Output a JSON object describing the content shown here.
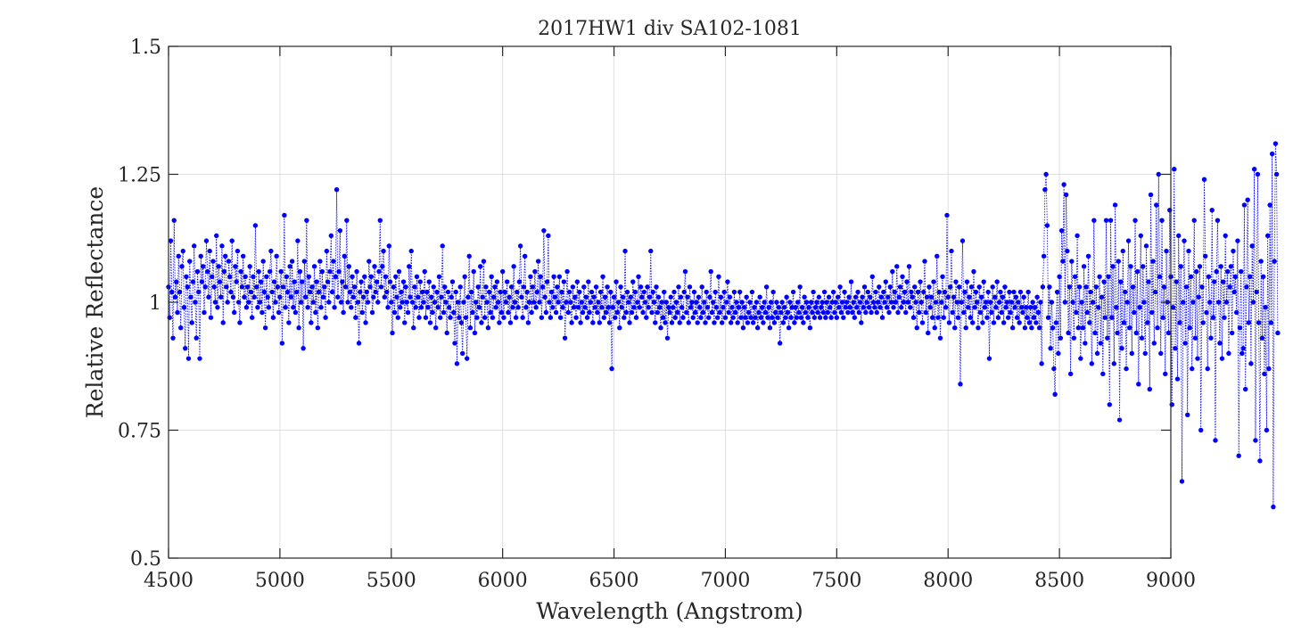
{
  "chart_data": {
    "type": "scatter",
    "title": "2017HW1 div SA102-1081",
    "xlabel": "Wavelength (Angstrom)",
    "ylabel": "Relative Reflectance",
    "xlim": [
      4500,
      9000
    ],
    "ylim": [
      0.5,
      1.5
    ],
    "xticks": [
      4500,
      5000,
      5500,
      6000,
      6500,
      7000,
      7500,
      8000,
      8500,
      9000
    ],
    "yticks": [
      0.5,
      0.75,
      1,
      1.25,
      1.5
    ],
    "xtick_labels": [
      "4500",
      "5000",
      "5500",
      "6000",
      "6500",
      "7000",
      "7500",
      "8000",
      "8500",
      "9000"
    ],
    "ytick_labels": [
      "0.5",
      "0.75",
      "1",
      "1.25",
      "1.5"
    ],
    "grid": true,
    "line_style": "dotted",
    "marker": "filled-circle",
    "series_color": "#0000ff",
    "series": [
      {
        "x_start": 4500,
        "x_step": 5,
        "values": [
          1.03,
          0.97,
          1.12,
          1.02,
          0.93,
          1.16,
          1.01,
          1.04,
          0.98,
          1.09,
          1.02,
          0.95,
          1.07,
          1.1,
          0.99,
          0.91,
          1.05,
          1.03,
          0.89,
          1.08,
          1.01,
          0.96,
          1.04,
          1.11,
          1.0,
          0.93,
          1.06,
          1.02,
          0.89,
          1.09,
          1.04,
          1.07,
          0.98,
          1.03,
          1.12,
          1.06,
          1.01,
          1.1,
          0.97,
          1.05,
          1.08,
          1.03,
          1.0,
          1.13,
          0.99,
          1.07,
          1.04,
          1.01,
          1.11,
          0.96,
          1.06,
          1.09,
          1.03,
          1.0,
          1.08,
          1.05,
          1.02,
          1.12,
          1.01,
          0.98,
          1.07,
          1.04,
          1.1,
          1.0,
          0.96,
          1.06,
          1.03,
          1.09,
          1.01,
          1.05,
          0.99,
          1.03,
          1.0,
          1.07,
          1.02,
          0.97,
          1.05,
          1.01,
          1.15,
          1.03,
          0.99,
          1.06,
          1.0,
          1.04,
          0.98,
          1.08,
          1.02,
          0.95,
          1.05,
          1.01,
          0.99,
          1.06,
          1.1,
          1.02,
          0.97,
          1.04,
          1.0,
          1.09,
          1.03,
          0.98,
          1.01,
          1.06,
          0.92,
          1.03,
          1.17,
          0.99,
          1.05,
          1.02,
          0.96,
          1.07,
          1.01,
          1.08,
          0.99,
          1.04,
          0.98,
          1.02,
          1.12,
          0.95,
          1.06,
          1.0,
          1.04,
          0.91,
          1.08,
          1.01,
          1.16,
          0.99,
          1.05,
          1.02,
          0.96,
          1.03,
          1.0,
          1.07,
          0.98,
          1.04,
          0.95,
          1.02,
          1.08,
          0.99,
          1.06,
          1.01,
          1.03,
          0.97,
          1.1,
          1.04,
          1.0,
          1.06,
          1.13,
          1.02,
          1.08,
          0.99,
          1.05,
          1.22,
          1.01,
          1.06,
          1.14,
          1.0,
          1.04,
          0.98,
          1.09,
          1.03,
          1.16,
          1.0,
          1.07,
          1.02,
          0.99,
          1.05,
          1.01,
          1.03,
          0.97,
          1.06,
          1.0,
          0.92,
          1.02,
          1.04,
          0.98,
          1.01,
          1.05,
          0.96,
          1.02,
          1.0,
          1.08,
          1.03,
          1.05,
          0.98,
          1.01,
          1.07,
          1.02,
          1.04,
          1.0,
          1.06,
          1.16,
          1.03,
          1.07,
          1.1,
          1.01,
          1.05,
          1.02,
          0.99,
          1.11,
          1.04,
          1.0,
          0.94,
          1.03,
          0.98,
          1.05,
          1.01,
          0.97,
          1.06,
          0.99,
          1.02,
          1.0,
          1.04,
          0.96,
          1.03,
          1.0,
          0.98,
          1.07,
          1.01,
          1.1,
          1.0,
          0.95,
          1.03,
          0.99,
          1.05,
          1.01,
          0.97,
          1.04,
          0.99,
          1.02,
          1.0,
          1.06,
          0.97,
          1.02,
          0.99,
          1.04,
          0.96,
          1.01,
          0.98,
          1.03,
          1.0,
          0.95,
          1.02,
          0.99,
          1.05,
          0.97,
          1.01,
          1.11,
          0.98,
          1.03,
          1.0,
          0.94,
          1.02,
          0.99,
          0.97,
          1.01,
          1.04,
          0.98,
          0.92,
          1.02,
          0.88,
          1.0,
          0.97,
          1.03,
          0.96,
          0.9,
          1.0,
          1.05,
          0.97,
          0.89,
          1.01,
          1.09,
          0.95,
          1.02,
          0.98,
          1.06,
          0.94,
          1.0,
          0.97,
          1.03,
          0.99,
          1.07,
          0.96,
          1.01,
          1.08,
          0.97,
          1.03,
          1.0,
          0.95,
          1.02,
          0.98,
          1.05,
          0.97,
          1.01,
          1.03,
          0.99,
          1.04,
          1.0,
          0.96,
          1.02,
          0.98,
          1.06,
          0.97,
          1.02,
          1.0,
          1.04,
          0.98,
          1.01,
          0.96,
          1.03,
          0.99,
          1.07,
          1.0,
          0.97,
          1.02,
          0.99,
          1.04,
          1.11,
          1.01,
          0.97,
          1.03,
          1.09,
          0.99,
          1.02,
          0.96,
          1.0,
          1.05,
          0.98,
          1.03,
          1.0,
          1.06,
          0.99,
          1.02,
          1.08,
          1.0,
          1.05,
          0.97,
          1.03,
          1.14,
          1.01,
          0.98,
          1.04,
          1.13,
          1.0,
          0.97,
          1.02,
          0.99,
          1.05,
          1.01,
          0.98,
          1.03,
          1.0,
          1.05,
          0.97,
          1.02,
          0.99,
          1.04,
          0.93,
          1.0,
          1.06,
          0.98,
          1.02,
          1.0,
          0.96,
          1.03,
          0.99,
          1.01,
          0.97,
          1.04,
          0.99,
          1.02,
          0.96,
          1.0,
          0.98,
          1.03,
          0.99,
          1.01,
          0.97,
          1.04,
          0.98,
          1.0,
          1.02,
          0.96,
          1.01,
          0.99,
          1.03,
          0.98,
          1.0,
          0.96,
          1.02,
          0.99,
          1.05,
          0.97,
          1.01,
          0.98,
          1.03,
          0.99,
          0.96,
          1.02,
          0.87,
          0.99,
          1.01,
          0.97,
          1.04,
          0.98,
          1.0,
          0.95,
          1.03,
          0.99,
          1.01,
          0.97,
          1.1,
          0.98,
          1.02,
          1.0,
          0.96,
          1.01,
          0.98,
          1.04,
          0.99,
          1.02,
          0.97,
          1.0,
          1.05,
          0.99,
          1.03,
          1.01,
          0.98,
          1.02,
          1.0,
          0.97,
          1.03,
          0.99,
          1.01,
          1.1,
          0.98,
          1.02,
          1.0,
          0.96,
          1.03,
          0.98,
          1.01,
          0.99,
          0.95,
          1.0,
          0.97,
          1.02,
          0.96,
          1.0,
          0.93,
          0.99,
          0.98,
          1.01,
          0.96,
          0.99,
          1.02,
          0.97,
          1.0,
          0.98,
          1.03,
          0.96,
          1.01,
          0.99,
          0.97,
          1.02,
          1.06,
          0.98,
          1.01,
          0.96,
          1.03,
          0.99,
          1.0,
          0.97,
          1.02,
          0.98,
          1.0,
          0.96,
          1.01,
          0.99,
          0.97,
          1.03,
          0.98,
          1.0,
          0.96,
          1.02,
          0.99,
          0.97,
          1.01,
          1.06,
          0.98,
          1.0,
          0.96,
          1.02,
          0.99,
          0.97,
          1.05,
          0.98,
          1.01,
          0.96,
          0.99,
          1.02,
          0.97,
          1.0,
          1.04,
          0.98,
          1.01,
          0.96,
          0.99,
          0.97,
          1.02,
          0.98,
          1.0,
          0.96,
          0.99,
          1.02,
          0.97,
          1.0,
          0.95,
          0.99,
          0.97,
          1.01,
          0.96,
          0.98,
          1.0,
          0.97,
          1.02,
          0.96,
          0.99,
          0.97,
          1.0,
          0.95,
          0.98,
          1.01,
          0.97,
          0.99,
          0.96,
          1.0,
          0.98,
          1.03,
          0.97,
          0.99,
          0.95,
          1.0,
          0.97,
          1.02,
          0.96,
          0.98,
          1.0,
          0.97,
          0.99,
          0.92,
          0.98,
          1.0,
          0.96,
          0.99,
          0.97,
          1.01,
          0.98,
          0.95,
          1.0,
          0.97,
          0.99,
          1.02,
          0.96,
          0.99,
          0.97,
          1.0,
          0.98,
          1.03,
          0.97,
          0.99,
          0.96,
          1.01,
          0.98,
          1.0,
          0.97,
          0.99,
          0.95,
          1.0,
          0.98,
          1.02,
          0.97,
          0.99,
          1.0,
          0.98,
          1.01,
          0.97,
          0.99,
          1.0,
          0.98,
          1.02,
          0.97,
          1.0,
          0.98,
          1.01,
          0.99,
          0.97,
          1.0,
          1.02,
          0.98,
          1.0,
          0.97,
          1.01,
          0.99,
          1.03,
          0.98,
          1.0,
          0.97,
          1.02,
          0.99,
          1.0,
          0.98,
          1.01,
          0.99,
          1.04,
          0.98,
          1.0,
          0.97,
          1.01,
          0.99,
          1.02,
          0.98,
          1.0,
          0.96,
          1.01,
          0.99,
          1.03,
          0.98,
          1.0,
          1.02,
          0.99,
          1.01,
          0.98,
          1.05,
          1.0,
          0.99,
          1.02,
          0.98,
          1.0,
          1.03,
          0.99,
          1.01,
          0.97,
          1.02,
          1.0,
          1.04,
          0.99,
          1.01,
          0.98,
          1.03,
          1.0,
          1.06,
          0.99,
          1.02,
          1.0,
          1.07,
          0.98,
          1.01,
          1.03,
          0.99,
          1.05,
          1.0,
          1.02,
          0.98,
          1.04,
          1.0,
          1.07,
          0.99,
          1.02,
          1.01,
          0.97,
          1.03,
          1.0,
          0.95,
          1.02,
          0.98,
          1.04,
          1.0,
          0.96,
          1.02,
          1.08,
          0.98,
          1.01,
          0.94,
          1.03,
          0.99,
          1.01,
          0.97,
          1.04,
          0.95,
          1.0,
          1.09,
          0.97,
          1.02,
          0.93,
          1.0,
          1.05,
          0.97,
          1.02,
          0.99,
          1.17,
          1.01,
          0.96,
          1.03,
          1.1,
          0.98,
          1.01,
          0.95,
          1.04,
          1.0,
          0.97,
          1.03,
          0.84,
          1.0,
          1.12,
          0.98,
          1.02,
          0.95,
          1.04,
          0.99,
          1.01,
          0.97,
          1.03,
          0.96,
          1.06,
          0.99,
          1.02,
          1.0,
          0.95,
          1.03,
          0.98,
          1.01,
          0.96,
          1.04,
          0.99,
          1.0,
          0.97,
          1.02,
          0.89,
          1.0,
          0.98,
          1.03,
          0.96,
          1.01,
          0.99,
          1.04,
          0.97,
          1.0,
          1.02,
          0.98,
          1.01,
          0.96,
          1.03,
          0.99,
          1.0,
          0.97,
          1.02,
          0.98,
          1.0,
          0.95,
          1.02,
          0.99,
          1.01,
          0.97,
          1.0,
          0.96,
          1.02,
          0.99,
          0.98,
          1.01,
          0.95,
          0.99,
          0.97,
          1.02,
          0.96,
          0.99,
          0.95,
          1.0,
          0.97,
          0.99,
          0.96,
          1.01,
          0.98,
          0.95,
          1.0,
          0.88,
          1.03,
          1.09,
          1.22,
          1.25,
          1.15,
          0.97,
          1.03,
          0.91,
          1.0,
          0.95,
          0.87,
          0.82,
          0.96,
          1.02,
          0.9,
          1.05,
          0.93,
          1.14,
          1.08,
          1.23,
          1.0,
          1.21,
          1.1,
          0.94,
          1.03,
          0.86,
          1.08,
          1.0,
          0.93,
          1.05,
          0.98,
          1.13,
          0.95,
          1.03,
          0.89,
          1.0,
          0.95,
          1.07,
          0.92,
          1.03,
          0.98,
          1.09,
          0.96,
          1.02,
          0.88,
          1.0,
          1.16,
          0.94,
          1.03,
          0.9,
          0.99,
          1.05,
          0.92,
          1.01,
          0.86,
          1.04,
          0.97,
          1.16,
          0.93,
          1.05,
          0.8,
          1.16,
          0.97,
          1.07,
          0.88,
          1.19,
          0.99,
          0.94,
          1.08,
          0.77,
          1.04,
          0.91,
          1.1,
          0.96,
          1.02,
          0.87,
          1.0,
          1.12,
          0.95,
          1.07,
          0.9,
          1.03,
          0.98,
          1.16,
          0.94,
          1.06,
          0.84,
          0.99,
          1.13,
          0.93,
          1.07,
          1.0,
          0.9,
          1.11,
          0.96,
          1.04,
          0.83,
          1.21,
          0.98,
          1.08,
          0.92,
          1.02,
          1.19,
          0.95,
          1.25,
          1.05,
          0.9,
          1.16,
          0.97,
          1.03,
          0.86,
          1.1,
          1.0,
          0.94,
          1.18,
          1.05,
          0.8,
          0.99,
          1.26,
          0.91,
          1.04,
          0.85,
          1.13,
          0.96,
          1.07,
          0.65,
          1.0,
          1.12,
          0.92,
          1.03,
          0.78,
          1.1,
          0.95,
          1.05,
          0.87,
          1.0,
          1.16,
          0.93,
          1.06,
          0.89,
          1.01,
          1.07,
          0.75,
          1.03,
          0.96,
          1.24,
          1.09,
          0.98,
          0.87,
          1.05,
          1.0,
          0.93,
          1.18,
          0.97,
          1.04,
          0.73,
          1.06,
          1.16,
          1.0,
          0.92,
          1.07,
          0.89,
          1.04,
          0.97,
          1.13,
          1.0,
          1.06,
          0.9,
          1.03,
          1.07,
          0.94,
          1.1,
          1.02,
          1.05,
          0.98,
          1.12,
          0.7,
          0.95,
          1.06,
          0.9,
          0.91,
          1.19,
          0.83,
          1.03,
          1.2,
          0.96,
          1.05,
          0.88,
          1.11,
          1.0,
          1.26,
          0.73,
          1.02,
          1.25,
          0.96,
          0.69,
          1.08,
          0.93,
          1.05,
          0.86,
          0.99,
          0.75,
          1.13,
          0.87,
          1.19,
          0.96,
          1.29,
          0.6,
          1.08,
          1.31,
          1.25,
          0.94
        ]
      }
    ]
  }
}
